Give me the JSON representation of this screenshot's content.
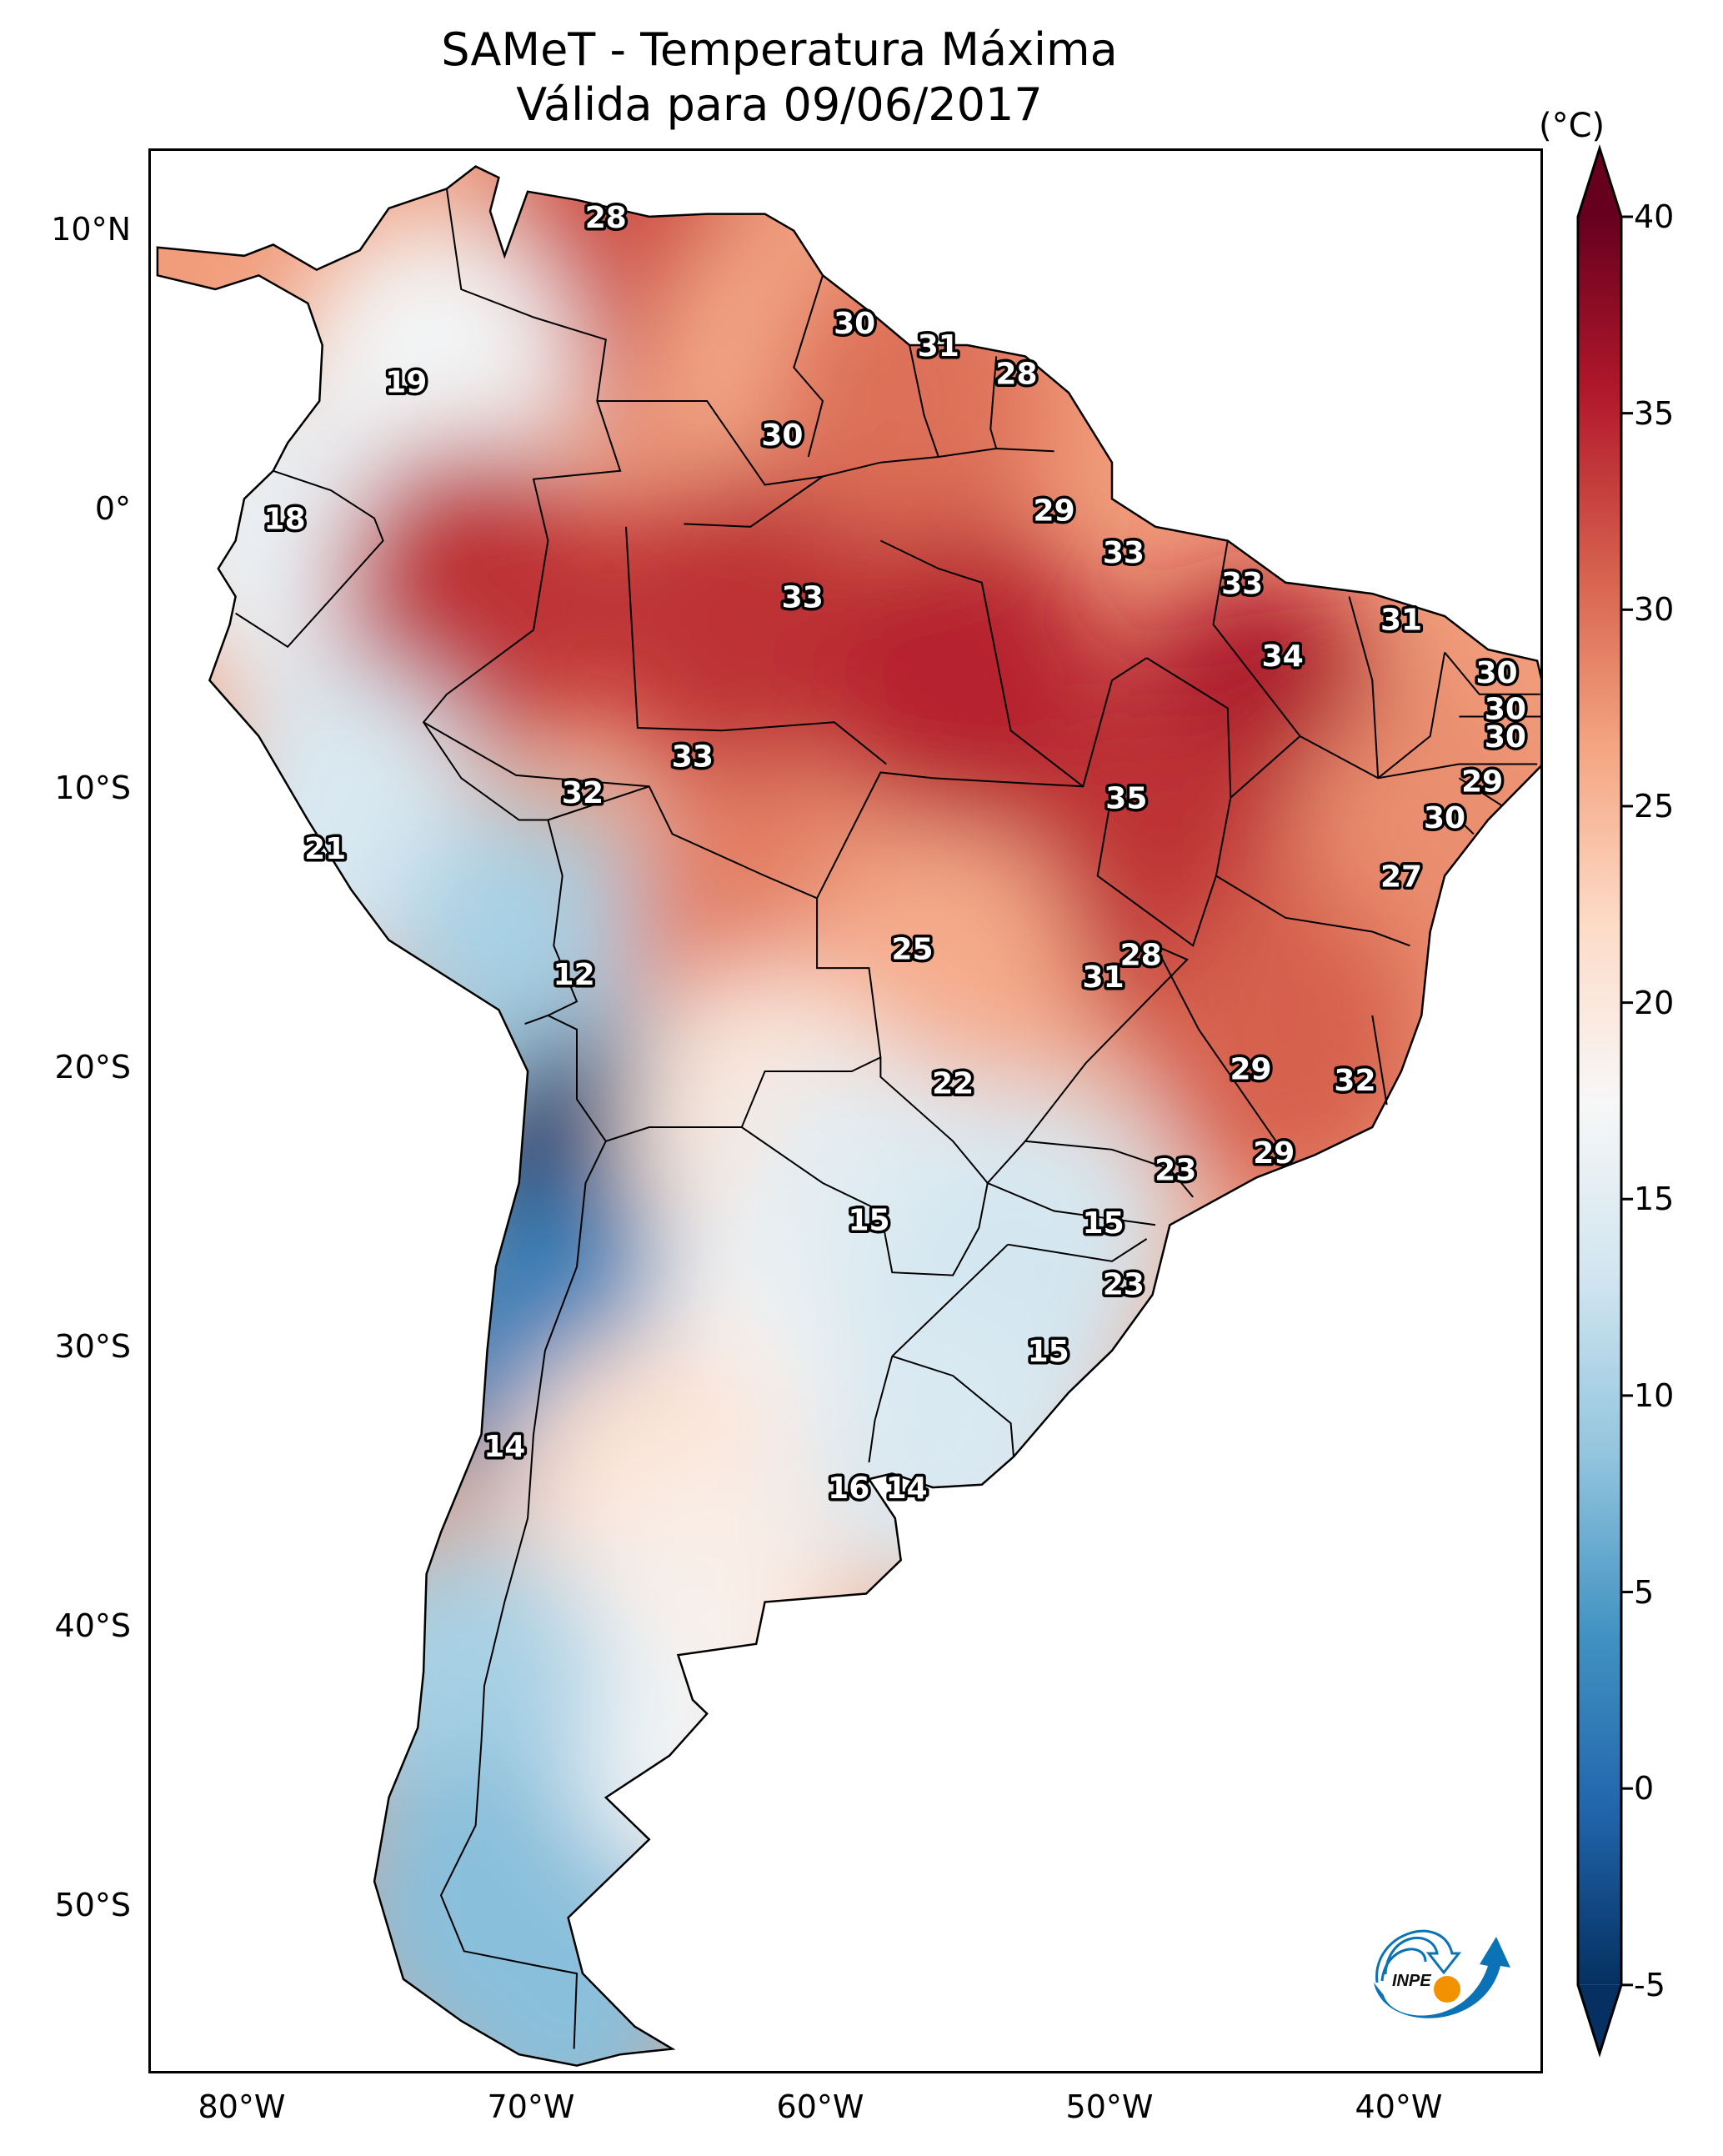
{
  "title": {
    "line1": "SAMeT - Temperatura Máxima",
    "line2": "Válida para 09/06/2017"
  },
  "map": {
    "extent": {
      "lon_min": -83.2,
      "lon_max": -35.0,
      "lat_min": -56.0,
      "lat_max": 13.0
    },
    "lat_ticks": [
      {
        "value": 10,
        "label": "10°N"
      },
      {
        "value": 0,
        "label": "0°"
      },
      {
        "value": -10,
        "label": "10°S"
      },
      {
        "value": -20,
        "label": "20°S"
      },
      {
        "value": -30,
        "label": "30°S"
      },
      {
        "value": -40,
        "label": "40°S"
      },
      {
        "value": -50,
        "label": "50°S"
      }
    ],
    "lon_ticks": [
      {
        "value": -80,
        "label": "80°W"
      },
      {
        "value": -70,
        "label": "70°W"
      },
      {
        "value": -60,
        "label": "60°W"
      },
      {
        "value": -50,
        "label": "50°W"
      },
      {
        "value": -40,
        "label": "40°W"
      }
    ],
    "field_samples": [
      {
        "lon": -67,
        "lat": 9,
        "t": 32
      },
      {
        "lon": -73.5,
        "lat": 5,
        "t": 17
      },
      {
        "lon": -61,
        "lat": 5,
        "t": 26
      },
      {
        "lon": -57,
        "lat": 4,
        "t": 30
      },
      {
        "lon": -78.5,
        "lat": -1,
        "t": 16
      },
      {
        "lon": -72,
        "lat": -3,
        "t": 34
      },
      {
        "lon": -63,
        "lat": -4,
        "t": 34
      },
      {
        "lon": -55,
        "lat": -6,
        "t": 35
      },
      {
        "lon": -45,
        "lat": -8,
        "t": 36
      },
      {
        "lon": -48,
        "lat": -13,
        "t": 34
      },
      {
        "lon": -39,
        "lat": -12,
        "t": 28
      },
      {
        "lon": -76.5,
        "lat": -11,
        "t": 14
      },
      {
        "lon": -70,
        "lat": -16,
        "t": 10
      },
      {
        "lon": -62,
        "lat": -15,
        "t": 29
      },
      {
        "lon": -56,
        "lat": -17,
        "t": 26
      },
      {
        "lon": -44,
        "lat": -19,
        "t": 31
      },
      {
        "lon": -67.5,
        "lat": -24,
        "t": -4
      },
      {
        "lon": -69.5,
        "lat": -30,
        "t": 2
      },
      {
        "lon": -62,
        "lat": -22,
        "t": 20
      },
      {
        "lon": -61,
        "lat": -29,
        "t": 18
      },
      {
        "lon": -58,
        "lat": -25,
        "t": 15
      },
      {
        "lon": -52.5,
        "lat": -26,
        "t": 14
      },
      {
        "lon": -54,
        "lat": -30,
        "t": 13
      },
      {
        "lon": -55.5,
        "lat": -33.5,
        "t": 14
      },
      {
        "lon": -66,
        "lat": -35,
        "t": 21
      },
      {
        "lon": -64,
        "lat": -39,
        "t": 19
      },
      {
        "lon": -67,
        "lat": -45,
        "t": 17
      },
      {
        "lon": -72.5,
        "lat": -42,
        "t": 10
      },
      {
        "lon": -72,
        "lat": -50,
        "t": 8
      },
      {
        "lon": -69,
        "lat": -53,
        "t": 8
      }
    ],
    "labels": [
      {
        "lon": -67.5,
        "lat": 10.6,
        "value": "28"
      },
      {
        "lon": -74.4,
        "lat": 4.7,
        "value": "19"
      },
      {
        "lon": -58.9,
        "lat": 6.8,
        "value": "30"
      },
      {
        "lon": -56.0,
        "lat": 6.0,
        "value": "31"
      },
      {
        "lon": -53.3,
        "lat": 5.0,
        "value": "28"
      },
      {
        "lon": -61.4,
        "lat": 2.8,
        "value": "30"
      },
      {
        "lon": -78.6,
        "lat": -0.2,
        "value": "18"
      },
      {
        "lon": -52.0,
        "lat": 0.1,
        "value": "29"
      },
      {
        "lon": -49.6,
        "lat": -1.4,
        "value": "33"
      },
      {
        "lon": -60.7,
        "lat": -3.0,
        "value": "33"
      },
      {
        "lon": -45.5,
        "lat": -2.5,
        "value": "33"
      },
      {
        "lon": -40.0,
        "lat": -3.8,
        "value": "31"
      },
      {
        "lon": -44.1,
        "lat": -5.1,
        "value": "34"
      },
      {
        "lon": -36.7,
        "lat": -5.7,
        "value": "30"
      },
      {
        "lon": -36.4,
        "lat": -7.0,
        "value": "30"
      },
      {
        "lon": -36.4,
        "lat": -8.0,
        "value": "30"
      },
      {
        "lon": -64.5,
        "lat": -8.7,
        "value": "33"
      },
      {
        "lon": -68.3,
        "lat": -10.0,
        "value": "32"
      },
      {
        "lon": -49.5,
        "lat": -10.2,
        "value": "35"
      },
      {
        "lon": -37.2,
        "lat": -9.6,
        "value": "29"
      },
      {
        "lon": -38.5,
        "lat": -10.9,
        "value": "30"
      },
      {
        "lon": -77.2,
        "lat": -12.0,
        "value": "21"
      },
      {
        "lon": -40.0,
        "lat": -13.0,
        "value": "27"
      },
      {
        "lon": -68.6,
        "lat": -16.5,
        "value": "12"
      },
      {
        "lon": -56.9,
        "lat": -15.6,
        "value": "25"
      },
      {
        "lon": -49.0,
        "lat": -15.8,
        "value": "28"
      },
      {
        "lon": -50.3,
        "lat": -16.6,
        "value": "31"
      },
      {
        "lon": -55.5,
        "lat": -20.4,
        "value": "22"
      },
      {
        "lon": -45.2,
        "lat": -19.9,
        "value": "29"
      },
      {
        "lon": -41.6,
        "lat": -20.3,
        "value": "32"
      },
      {
        "lon": -47.8,
        "lat": -23.5,
        "value": "23"
      },
      {
        "lon": -44.4,
        "lat": -22.9,
        "value": "29"
      },
      {
        "lon": -58.4,
        "lat": -25.3,
        "value": "15"
      },
      {
        "lon": -50.3,
        "lat": -25.4,
        "value": "15"
      },
      {
        "lon": -49.6,
        "lat": -27.6,
        "value": "23"
      },
      {
        "lon": -52.2,
        "lat": -30.0,
        "value": "15"
      },
      {
        "lon": -71.0,
        "lat": -33.4,
        "value": "14"
      },
      {
        "lon": -59.1,
        "lat": -34.9,
        "value": "16"
      },
      {
        "lon": -57.1,
        "lat": -34.9,
        "value": "14"
      }
    ]
  },
  "colorbar": {
    "unit": "(°C)",
    "min": -5,
    "max": 40,
    "extend": "both",
    "colormap": "RdBu_r",
    "ticks": [
      {
        "value": 40,
        "label": "40"
      },
      {
        "value": 35,
        "label": "35"
      },
      {
        "value": 30,
        "label": "30"
      },
      {
        "value": 25,
        "label": "25"
      },
      {
        "value": 20,
        "label": "20"
      },
      {
        "value": 15,
        "label": "15"
      },
      {
        "value": 10,
        "label": "10"
      },
      {
        "value": 5,
        "label": "5"
      },
      {
        "value": 0,
        "label": "0"
      },
      {
        "value": -5,
        "label": "-5"
      }
    ],
    "stops": [
      "#053061",
      "#2166ac",
      "#4393c3",
      "#92c5de",
      "#d1e5f0",
      "#f7f7f7",
      "#fddbc7",
      "#f4a582",
      "#d6604d",
      "#b2182b",
      "#67001f"
    ]
  },
  "logo": {
    "text": "INPE",
    "colors": {
      "blue": "#0a72b5",
      "orange": "#f39200"
    }
  }
}
